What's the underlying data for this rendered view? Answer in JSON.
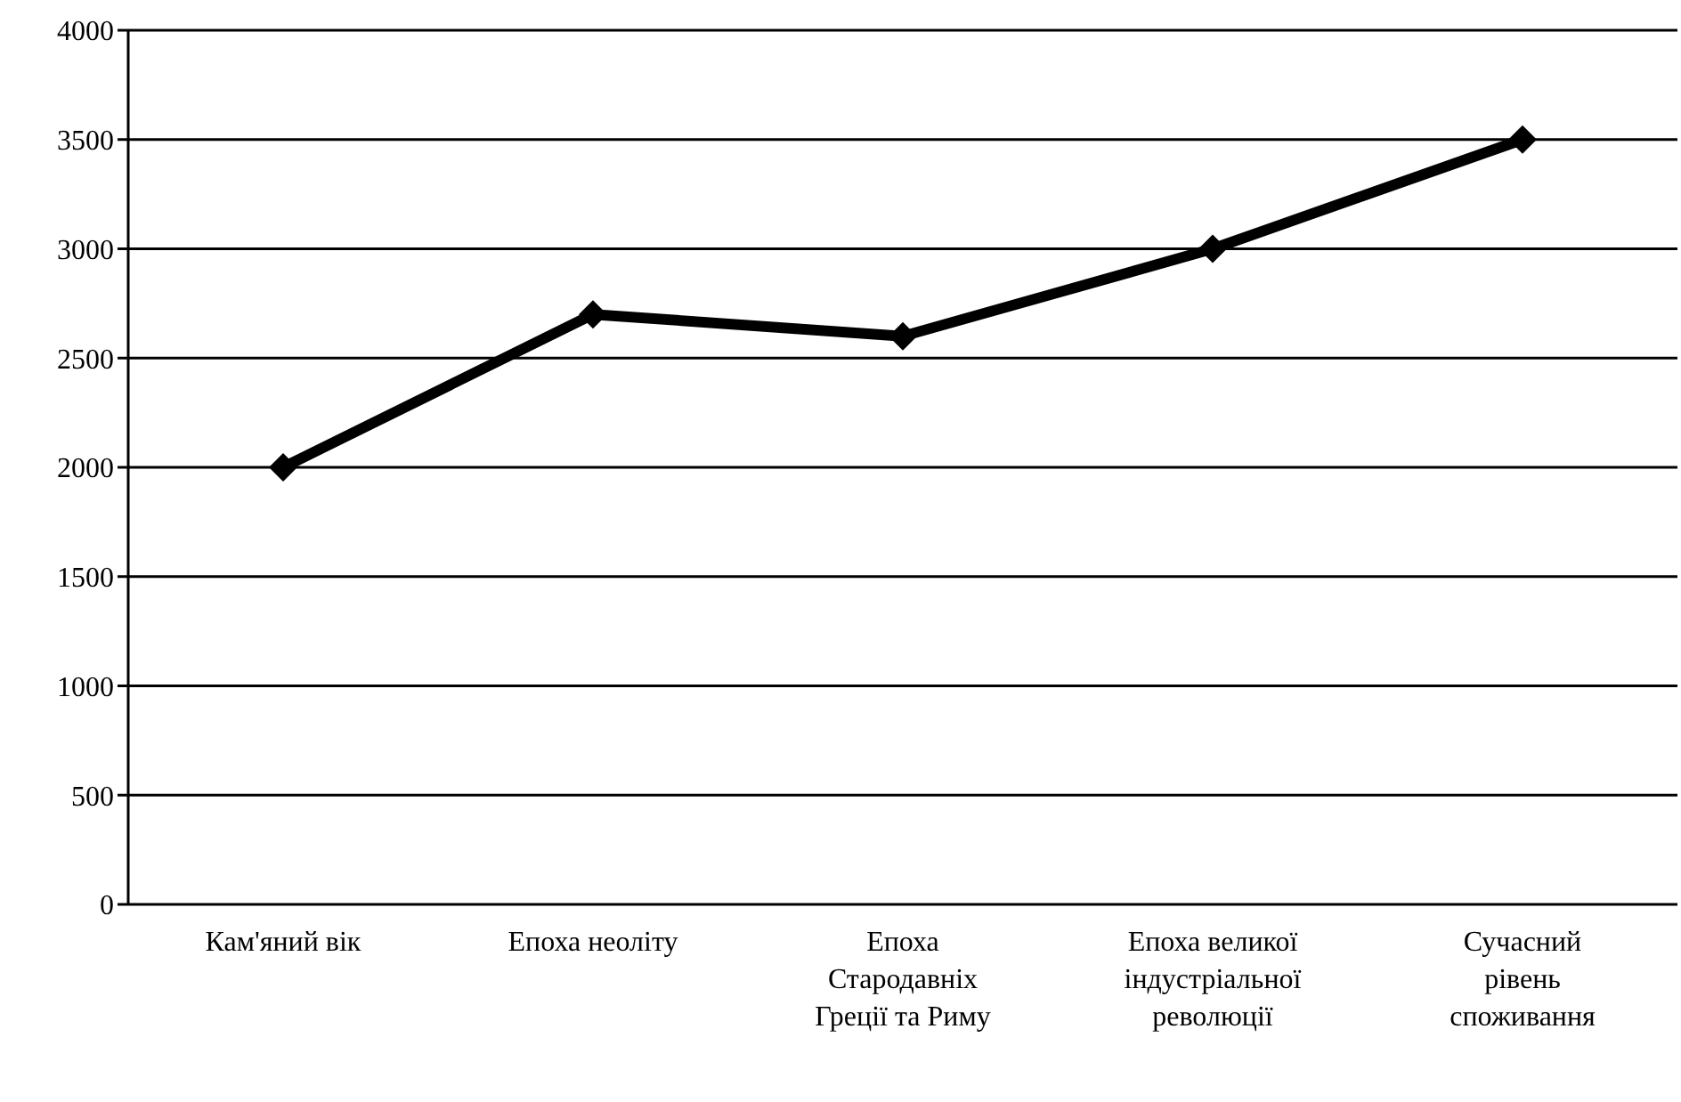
{
  "chart_data": {
    "type": "line",
    "categories": [
      "Кам'яний вік",
      "Епоха неоліту",
      "Епоха Стародавніх Греції та Риму",
      "Епоха великої індустріальної революції",
      "Сучасний рівень споживання"
    ],
    "series": [
      {
        "color": "#000000",
        "values": [
          2000,
          2700,
          2600,
          3000,
          3500
        ]
      }
    ],
    "ylim": [
      0,
      4000
    ],
    "yticks": [
      0,
      500,
      1000,
      1500,
      2000,
      2500,
      3000,
      3500,
      4000
    ],
    "grid": "y",
    "legend": false,
    "marker": "diamond",
    "line_style": "solid"
  }
}
